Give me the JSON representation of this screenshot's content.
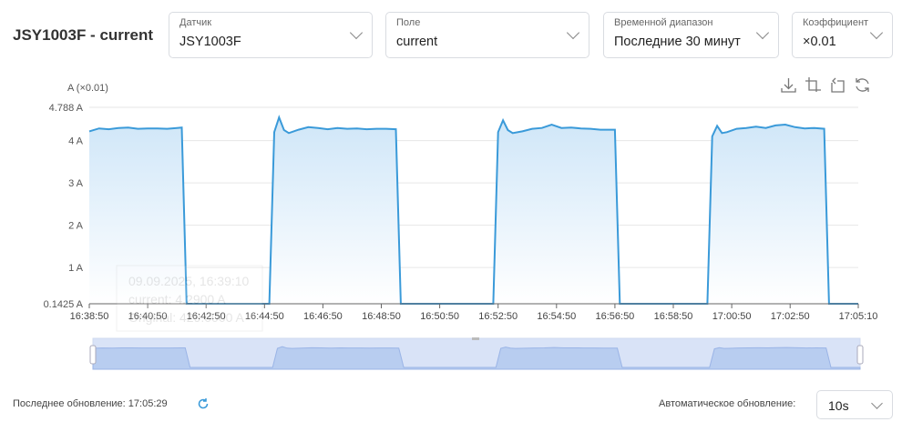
{
  "header": {
    "title": "JSY1003F - current"
  },
  "filters": [
    {
      "label": "Датчик",
      "value": "JSY1003F"
    },
    {
      "label": "Поле",
      "value": "current"
    },
    {
      "label": "Временной диапазон",
      "value": "Последние 30 минут"
    },
    {
      "label": "Коэффициент",
      "value": "×0.01"
    }
  ],
  "toolbox": [
    "download-icon",
    "zoom-select-icon",
    "zoom-reset-icon",
    "restore-icon"
  ],
  "tooltip": {
    "time": "09.09.2025, 16:39:10",
    "current": "current: 4.2900 A",
    "original": "Original: 429.0000 A"
  },
  "footer": {
    "last_update": "Последнее обновление: 17:05:29",
    "auto_label": "Автоматическое обновление:",
    "auto_value": "10s"
  },
  "colors": {
    "line": "#3a9ad9",
    "fill": "#d6ebfa"
  },
  "chart_data": {
    "type": "area",
    "ylabel": "A (×0.01)",
    "ylim": [
      0.1425,
      4.788
    ],
    "yticks": [
      "0.1425 A",
      "1 A",
      "2 A",
      "3 A",
      "4 A",
      "4.788 A"
    ],
    "ytick_values": [
      0.1425,
      1,
      2,
      3,
      4,
      4.788
    ],
    "xlim": [
      "16:38:50",
      "17:05:10"
    ],
    "xticks": [
      "16:38:50",
      "16:40:50",
      "16:42:50",
      "16:44:50",
      "16:46:50",
      "16:48:50",
      "16:50:50",
      "16:52:50",
      "16:54:50",
      "16:56:50",
      "16:58:50",
      "17:00:50",
      "17:02:50",
      "17:05:10"
    ],
    "series": [
      {
        "name": "current",
        "points": [
          [
            "16:38:50",
            4.22
          ],
          [
            "16:39:10",
            4.29
          ],
          [
            "16:39:30",
            4.27
          ],
          [
            "16:39:50",
            4.3
          ],
          [
            "16:40:10",
            4.31
          ],
          [
            "16:40:30",
            4.28
          ],
          [
            "16:40:50",
            4.29
          ],
          [
            "16:41:10",
            4.29
          ],
          [
            "16:41:30",
            4.28
          ],
          [
            "16:41:50",
            4.3
          ],
          [
            "16:42:00",
            4.31
          ],
          [
            "16:42:10",
            0.1425
          ],
          [
            "16:45:00",
            0.1425
          ],
          [
            "16:45:10",
            4.2
          ],
          [
            "16:45:20",
            4.55
          ],
          [
            "16:45:30",
            4.25
          ],
          [
            "16:45:40",
            4.18
          ],
          [
            "16:46:00",
            4.26
          ],
          [
            "16:46:20",
            4.32
          ],
          [
            "16:46:40",
            4.3
          ],
          [
            "16:47:00",
            4.27
          ],
          [
            "16:47:20",
            4.3
          ],
          [
            "16:47:40",
            4.28
          ],
          [
            "16:48:00",
            4.29
          ],
          [
            "16:48:20",
            4.27
          ],
          [
            "16:48:40",
            4.28
          ],
          [
            "16:49:00",
            4.28
          ],
          [
            "16:49:20",
            4.27
          ],
          [
            "16:49:30",
            0.1425
          ],
          [
            "16:52:40",
            0.1425
          ],
          [
            "16:52:50",
            4.2
          ],
          [
            "16:53:00",
            4.48
          ],
          [
            "16:53:10",
            4.25
          ],
          [
            "16:53:20",
            4.18
          ],
          [
            "16:53:40",
            4.22
          ],
          [
            "16:54:00",
            4.28
          ],
          [
            "16:54:20",
            4.3
          ],
          [
            "16:54:40",
            4.38
          ],
          [
            "16:55:00",
            4.3
          ],
          [
            "16:55:20",
            4.31
          ],
          [
            "16:55:40",
            4.29
          ],
          [
            "16:56:00",
            4.28
          ],
          [
            "16:56:20",
            4.26
          ],
          [
            "16:56:50",
            4.26
          ],
          [
            "16:57:00",
            0.1425
          ],
          [
            "17:00:00",
            0.1425
          ],
          [
            "17:00:10",
            4.1
          ],
          [
            "17:00:20",
            4.35
          ],
          [
            "17:00:30",
            4.18
          ],
          [
            "17:00:40",
            4.2
          ],
          [
            "17:01:00",
            4.28
          ],
          [
            "17:01:20",
            4.3
          ],
          [
            "17:01:40",
            4.33
          ],
          [
            "17:02:00",
            4.3
          ],
          [
            "17:02:20",
            4.36
          ],
          [
            "17:02:40",
            4.38
          ],
          [
            "17:03:00",
            4.32
          ],
          [
            "17:03:20",
            4.29
          ],
          [
            "17:03:40",
            4.3
          ],
          [
            "17:04:00",
            4.28
          ],
          [
            "17:04:10",
            0.1425
          ],
          [
            "17:05:10",
            0.1425
          ]
        ]
      }
    ]
  }
}
